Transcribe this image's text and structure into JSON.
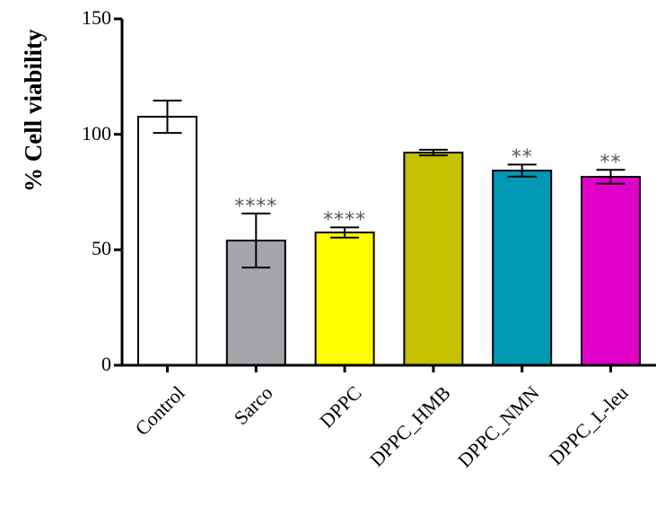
{
  "chart_data": {
    "type": "bar",
    "title": "",
    "xlabel": "",
    "ylabel": "% Cell viability",
    "ylim": [
      0,
      150
    ],
    "yticks": [
      0,
      50,
      100,
      150
    ],
    "grid": false,
    "legend": null,
    "categories": [
      "Control",
      "Sarco",
      "DPPC",
      "DPPC_HMB",
      "DPPC_NMN",
      "DPPC_L-leu"
    ],
    "values": [
      107.6,
      54.0,
      57.5,
      92.1,
      84.3,
      81.6
    ],
    "error": [
      7.0,
      11.7,
      2.2,
      1.2,
      2.6,
      3.0
    ],
    "significance": [
      "",
      "****",
      "****",
      "",
      "**",
      "**"
    ],
    "colors": [
      "#ffffff",
      "#a6a5aa",
      "#ffff00",
      "#c5c000",
      "#0098b4",
      "#e000c8"
    ]
  },
  "axis": {
    "ylabel": "% Cell viability",
    "yticks": [
      "0",
      "50",
      "100",
      "150"
    ]
  }
}
